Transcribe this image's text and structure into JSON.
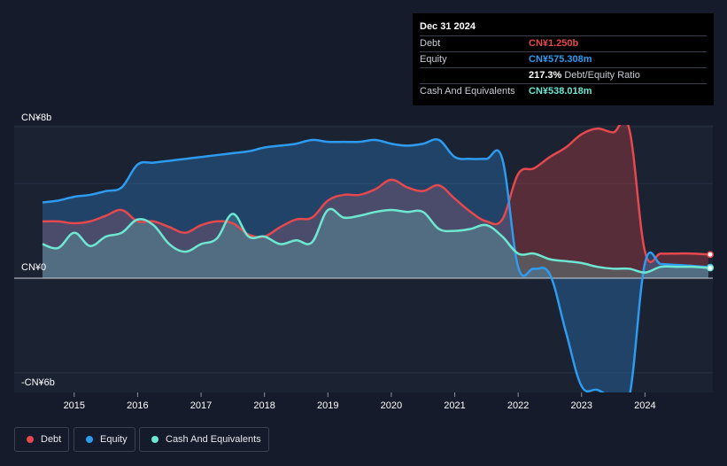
{
  "tooltip": {
    "date": "Dec 31 2024",
    "rows": [
      {
        "label": "Debt",
        "value": "CN¥1.250b",
        "color": "#e5484d"
      },
      {
        "label": "Equity",
        "value": "CN¥575.308m",
        "color": "#2d9bf0"
      },
      {
        "label": "",
        "value": "217.3%",
        "value_suffix": "Debt/Equity Ratio",
        "color": "#ffffff"
      },
      {
        "label": "Cash And Equivalents",
        "value": "CN¥538.018m",
        "color": "#6ee7d2"
      }
    ]
  },
  "legend": [
    {
      "label": "Debt",
      "color": "#e5484d"
    },
    {
      "label": "Equity",
      "color": "#2d9bf0"
    },
    {
      "label": "Cash And Equivalents",
      "color": "#6ee7d2"
    }
  ],
  "chart_data": {
    "type": "area",
    "y_tick_labels": [
      "CN¥8b",
      "CN¥0",
      "-CN¥6b"
    ],
    "y_tick_values": [
      8,
      0,
      -6
    ],
    "ylim": [
      -7.2,
      8
    ],
    "xlim": [
      2014.5,
      2025.0
    ],
    "x_ticks": [
      2015,
      2016,
      2017,
      2018,
      2019,
      2020,
      2021,
      2022,
      2023,
      2024
    ],
    "grid": true,
    "legend_position": "bottom-left",
    "series": [
      {
        "name": "Debt",
        "color": "#e5484d",
        "x": [
          2014.5,
          2014.75,
          2015.0,
          2015.25,
          2015.5,
          2015.75,
          2016.0,
          2016.25,
          2016.5,
          2016.75,
          2017.0,
          2017.25,
          2017.5,
          2017.75,
          2018.0,
          2018.25,
          2018.5,
          2018.75,
          2019.0,
          2019.25,
          2019.5,
          2019.75,
          2020.0,
          2020.25,
          2020.5,
          2020.75,
          2021.0,
          2021.25,
          2021.5,
          2021.75,
          2022.0,
          2022.25,
          2022.5,
          2022.75,
          2023.0,
          2023.25,
          2023.5,
          2023.75,
          2024.0,
          2024.25,
          2024.5,
          2024.75,
          2025.0
        ],
        "values": [
          3.0,
          3.0,
          2.9,
          3.0,
          3.3,
          3.6,
          3.0,
          3.0,
          2.7,
          2.4,
          2.8,
          3.0,
          2.9,
          2.3,
          2.2,
          2.7,
          3.1,
          3.2,
          4.1,
          4.4,
          4.4,
          4.7,
          5.2,
          4.8,
          4.6,
          4.9,
          4.2,
          3.5,
          3.0,
          3.1,
          5.5,
          5.8,
          6.4,
          6.9,
          7.6,
          7.9,
          7.7,
          7.9,
          1.4,
          1.3,
          1.3,
          1.3,
          1.25
        ]
      },
      {
        "name": "Equity",
        "color": "#2d9bf0",
        "x": [
          2014.5,
          2014.75,
          2015.0,
          2015.25,
          2015.5,
          2015.75,
          2016.0,
          2016.25,
          2016.5,
          2016.75,
          2017.0,
          2017.25,
          2017.5,
          2017.75,
          2018.0,
          2018.25,
          2018.5,
          2018.75,
          2019.0,
          2019.25,
          2019.5,
          2019.75,
          2020.0,
          2020.25,
          2020.5,
          2020.75,
          2021.0,
          2021.25,
          2021.5,
          2021.75,
          2022.0,
          2022.25,
          2022.5,
          2022.75,
          2023.0,
          2023.25,
          2023.5,
          2023.75,
          2024.0,
          2024.25,
          2024.5,
          2024.75,
          2025.0
        ],
        "values": [
          4.0,
          4.1,
          4.3,
          4.4,
          4.6,
          4.8,
          6.0,
          6.1,
          6.2,
          6.3,
          6.4,
          6.5,
          6.6,
          6.7,
          6.9,
          7.0,
          7.1,
          7.3,
          7.2,
          7.2,
          7.2,
          7.3,
          7.1,
          7.0,
          7.1,
          7.3,
          6.4,
          6.3,
          6.3,
          6.3,
          0.6,
          0.5,
          0.2,
          -2.8,
          -5.7,
          -5.9,
          -6.3,
          -6.3,
          0.8,
          0.75,
          0.7,
          0.65,
          0.58
        ]
      },
      {
        "name": "Cash And Equivalents",
        "color": "#6ee7d2",
        "x": [
          2014.5,
          2014.75,
          2015.0,
          2015.25,
          2015.5,
          2015.75,
          2016.0,
          2016.25,
          2016.5,
          2016.75,
          2017.0,
          2017.25,
          2017.5,
          2017.75,
          2018.0,
          2018.25,
          2018.5,
          2018.75,
          2019.0,
          2019.25,
          2019.5,
          2019.75,
          2020.0,
          2020.25,
          2020.5,
          2020.75,
          2021.0,
          2021.25,
          2021.5,
          2021.75,
          2022.0,
          2022.25,
          2022.5,
          2022.75,
          2023.0,
          2023.25,
          2023.5,
          2023.75,
          2024.0,
          2024.25,
          2024.5,
          2024.75,
          2025.0
        ],
        "values": [
          1.8,
          1.6,
          2.4,
          1.7,
          2.2,
          2.4,
          3.1,
          2.8,
          1.8,
          1.4,
          1.8,
          2.1,
          3.4,
          2.2,
          2.2,
          1.8,
          2.0,
          1.9,
          3.6,
          3.2,
          3.3,
          3.5,
          3.6,
          3.5,
          3.5,
          2.6,
          2.5,
          2.6,
          2.8,
          2.2,
          1.3,
          1.3,
          1.0,
          0.9,
          0.8,
          0.6,
          0.5,
          0.5,
          0.3,
          0.6,
          0.6,
          0.6,
          0.54
        ]
      }
    ]
  }
}
